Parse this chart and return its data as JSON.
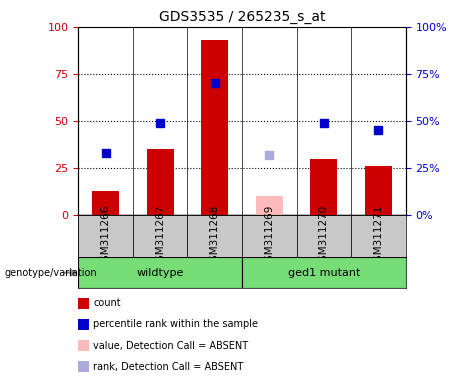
{
  "title": "GDS3535 / 265235_s_at",
  "samples": [
    "GSM311266",
    "GSM311267",
    "GSM311268",
    "GSM311269",
    "GSM311270",
    "GSM311271"
  ],
  "bar_values": [
    13,
    35,
    93,
    null,
    30,
    26
  ],
  "bar_color": "#cc0000",
  "absent_bar_values": [
    null,
    null,
    null,
    10,
    null,
    null
  ],
  "absent_bar_color": "#ffbbbb",
  "rank_values": [
    33,
    49,
    70,
    null,
    49,
    45
  ],
  "rank_color": "#0000cc",
  "absent_rank_values": [
    null,
    null,
    null,
    32,
    null,
    null
  ],
  "absent_rank_color": "#aaaadd",
  "ylim": [
    0,
    100
  ],
  "yticks": [
    0,
    25,
    50,
    75,
    100
  ],
  "dotted_lines": [
    25,
    50,
    75
  ],
  "sample_bg": "#c8c8c8",
  "group_bg": "#77dd77",
  "wildtype_samples": [
    0,
    1,
    2
  ],
  "mutant_samples": [
    3,
    4,
    5
  ],
  "legend_items": [
    {
      "label": "count",
      "color": "#cc0000"
    },
    {
      "label": "percentile rank within the sample",
      "color": "#0000cc"
    },
    {
      "label": "value, Detection Call = ABSENT",
      "color": "#ffbbbb"
    },
    {
      "label": "rank, Detection Call = ABSENT",
      "color": "#aaaadd"
    }
  ],
  "bar_width": 0.5,
  "marker_size": 6,
  "title_fontsize": 10,
  "axis_fontsize": 8,
  "label_fontsize": 7.5,
  "legend_fontsize": 8
}
